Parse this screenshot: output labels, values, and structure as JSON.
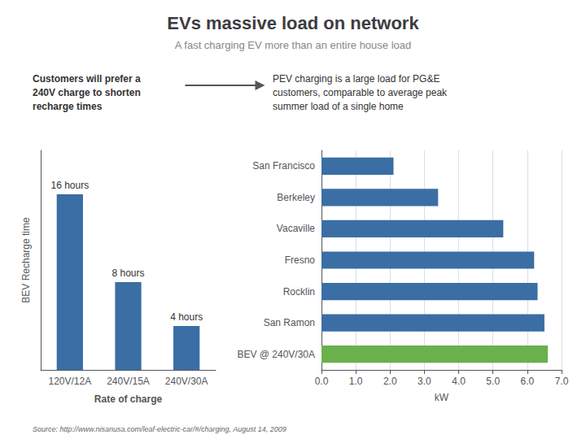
{
  "title": "EVs massive load on network",
  "subtitle": "A fast charging EV more than an entire house load",
  "annotations": [
    "Customers will prefer a\n240V charge to shorten\nrecharge times",
    "PEV charging is a large load for PG&E\ncustomers, comparable to average peak\nsummer load of a single home",
    "Source: http://www.nisanusa.com/leaf-electric-car/#/charging, August 14, 2009"
  ],
  "chart_data": [
    {
      "type": "bar",
      "categories": [
        "120V/12A",
        "240V/15A",
        "240V/30A"
      ],
      "values": [
        16,
        8,
        4
      ],
      "value_labels": [
        "16 hours",
        "8 hours",
        "4 hours"
      ],
      "data_labels": true,
      "color": "#3a6ea5",
      "xlabel": "Rate of charge",
      "ylabel": "BEV Recharge time",
      "ylim": [
        0,
        20
      ],
      "tick_labels": "x",
      "grid": false
    },
    {
      "type": "bar",
      "orientation": "horizontal",
      "categories": [
        "BEV @ 240V/30A",
        "San Ramon",
        "Rocklin",
        "Fresno",
        "Vacaville",
        "Berkeley",
        "San Francisco"
      ],
      "values": [
        6.6,
        6.5,
        6.3,
        6.2,
        5.3,
        3.4,
        2.1
      ],
      "colors": [
        "#6ab04c",
        "#3a6ea5",
        "#3a6ea5",
        "#3a6ea5",
        "#3a6ea5",
        "#3a6ea5",
        "#3a6ea5"
      ],
      "xlabel": "kW",
      "xlim": [
        0,
        7.0
      ],
      "xticks": [
        {
          "value": 0.0,
          "label": "0.0"
        },
        {
          "value": 1.0,
          "label": "1.0"
        },
        {
          "value": 2.0,
          "label": "2.0"
        },
        {
          "value": 3.0,
          "label": "3.0"
        },
        {
          "value": 4.0,
          "label": "4.0"
        },
        {
          "value": 5.0,
          "label": "5.0"
        },
        {
          "value": 6.0,
          "label": "6.0"
        },
        {
          "value": 7.0,
          "label": "7.0"
        }
      ],
      "grid": true
    }
  ]
}
